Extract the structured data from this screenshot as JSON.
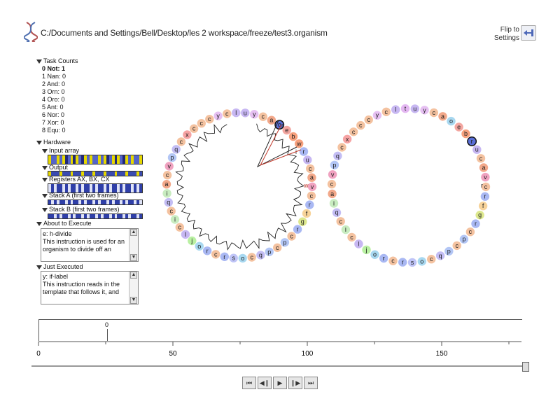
{
  "window": {
    "title_path": "C:/Documents and Settings/Bell/Desktop/les 2 workspace/freeze/test3.organism",
    "flip_label": "Flip to Settings",
    "flip_icon": "back-arrow-icon",
    "app_icon": "dna-icon"
  },
  "panel": {
    "task_counts": {
      "heading": "Task Counts",
      "rows": [
        "0 Not: 1",
        "1 Nan: 0",
        "2 And: 0",
        "3 Orn: 0",
        "4 Oro: 0",
        "5 Ant: 0",
        "6 Nor: 0",
        "7 Xor: 0",
        "8 Equ: 0"
      ]
    },
    "hardware": {
      "heading": "Hardware",
      "input_label": "Input array",
      "output_label": "Output",
      "registers_label": "Registers AX, BX, CX",
      "stack_a_label": "Stack A (first two frames)",
      "stack_b_label": "Stack B (first two frames)"
    },
    "about": {
      "heading": "About to Execute",
      "line1": "e: h-divide",
      "body": "This instruction is used for an organism to divide off an"
    },
    "just": {
      "heading": "Just Executed",
      "line1": "y: if-label",
      "body": "This instruction reads in the template that follows it, and"
    }
  },
  "organisms": {
    "left": {
      "letters": [
        "u",
        "y",
        "c",
        "a",
        "o",
        "e",
        "b",
        "w",
        "r",
        "u",
        "c",
        "a",
        "v",
        "c",
        "r",
        "f",
        "g",
        "r",
        "c",
        "p",
        "c",
        "p",
        "q",
        "c",
        "o",
        "s",
        "r",
        "c",
        "r",
        "o",
        "j",
        "l",
        "c",
        "i",
        "c",
        "q",
        "i",
        "a",
        "c",
        "v",
        "p",
        "q",
        "c",
        "x",
        "c",
        "c",
        "c",
        "y",
        "c",
        "l"
      ],
      "highlight_index": 4,
      "pointer_index": 8,
      "pointer_letter": "w",
      "inner_letter_near_top": "r",
      "inner_letter_mid": "i"
    },
    "right": {
      "letters": [
        "u",
        "y",
        "c",
        "a",
        "o",
        "e",
        "b",
        "r",
        "u",
        "c",
        "a",
        "v",
        "c",
        "r",
        "f",
        "g",
        "r",
        "c",
        "p",
        "c",
        "p",
        "q",
        "c",
        "o",
        "s",
        "r",
        "c",
        "r",
        "o",
        "j",
        "l",
        "c",
        "i",
        "c",
        "q",
        "i",
        "a",
        "c",
        "v",
        "p",
        "q",
        "c",
        "x",
        "c",
        "c",
        "c",
        "y",
        "c",
        "l",
        "t"
      ],
      "highlight_index": 7,
      "inner_letter": "r"
    },
    "letter_colors": {
      "a": "#f2a88a",
      "b": "#f7a07c",
      "c": "#f4c2a0",
      "e": "#f3a6a0",
      "f": "#f7d39a",
      "g": "#dde88e",
      "i": "#c8ecc0",
      "j": "#b9f0a2",
      "l": "#c7b7f2",
      "o": "#a8d8f0",
      "p": "#b3c6f5",
      "q": "#c3bdf4",
      "r": "#a9b8f3",
      "s": "#bfc4f7",
      "t": "#e4b7f2",
      "u": "#c7b7f2",
      "v": "#f0a2c0",
      "w": "#f7a07c",
      "x": "#f6a3a3",
      "y": "#e6c0f2"
    },
    "highlight_color": "#5a6fd8",
    "pointer_color": "#c0392b"
  },
  "timeline": {
    "marker_label": "0",
    "ticks": [
      "0",
      "50",
      "100",
      "150"
    ]
  },
  "controls": [
    "rewind-icon",
    "step-back-icon",
    "play-icon",
    "step-forward-icon",
    "fast-forward-icon"
  ]
}
